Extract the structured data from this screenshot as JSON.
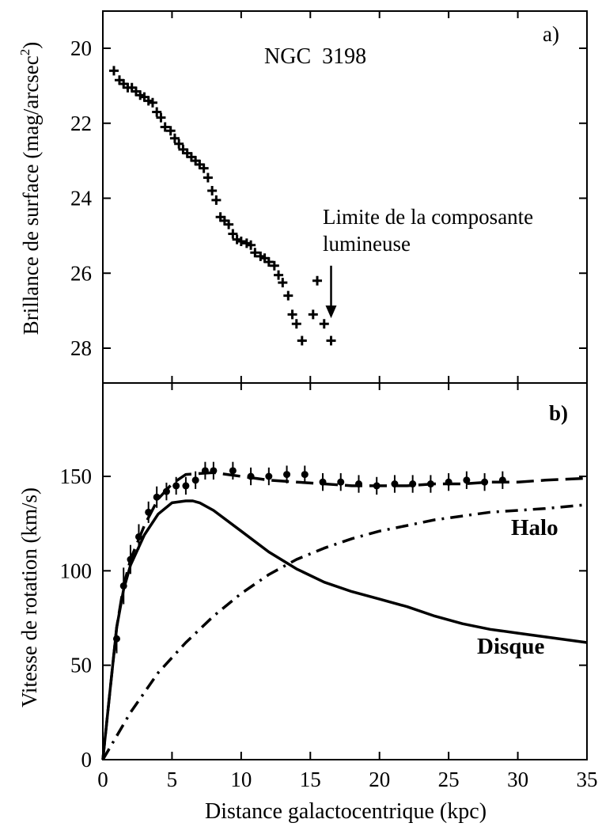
{
  "chart_data": [
    {
      "panel_label": "a)",
      "type": "scatter",
      "annotation_title": "NGC  3198",
      "ylabel_main": "Brillance de surface (mag/arcsec",
      "ylabel_sup": "2",
      "ylabel_close": ")",
      "xlim": [
        0,
        35
      ],
      "ylim": [
        29,
        19
      ],
      "y_inverted": true,
      "yticks": [
        "20",
        "22",
        "24",
        "26",
        "28"
      ],
      "ytick_values": [
        20,
        22,
        24,
        26,
        28
      ],
      "annotation_lines": [
        "Limite de la composante",
        "lumineuse"
      ],
      "arrow_x": 16.5,
      "arrow_y_from": 25.8,
      "arrow_y_to": 27.2,
      "series": [
        {
          "marker": "plus",
          "x": [
            0.8,
            1.2,
            1.5,
            1.8,
            2.1,
            2.4,
            2.7,
            3.0,
            3.3,
            3.6,
            3.9,
            4.2,
            4.5,
            4.9,
            5.2,
            5.5,
            5.8,
            6.1,
            6.4,
            6.7,
            7.0,
            7.3,
            7.6,
            7.9,
            8.2,
            8.5,
            8.8,
            9.1,
            9.4,
            9.7,
            10.0,
            10.4,
            10.7,
            11.0,
            11.4,
            11.7,
            12.0,
            12.4,
            12.7,
            13.0,
            13.4,
            13.7,
            14.0,
            14.4,
            15.2,
            15.5,
            16.0,
            16.5
          ],
          "y": [
            20.6,
            20.85,
            20.95,
            21.05,
            21.05,
            21.15,
            21.25,
            21.3,
            21.4,
            21.45,
            21.7,
            21.85,
            22.1,
            22.2,
            22.4,
            22.55,
            22.7,
            22.8,
            22.9,
            23.0,
            23.1,
            23.2,
            23.45,
            23.8,
            24.05,
            24.5,
            24.6,
            24.7,
            24.95,
            25.1,
            25.15,
            25.2,
            25.25,
            25.45,
            25.55,
            25.6,
            25.7,
            25.8,
            26.05,
            26.25,
            26.6,
            27.1,
            27.35,
            27.8,
            27.1,
            26.2,
            27.35,
            27.8
          ]
        }
      ]
    },
    {
      "panel_label": "b)",
      "type": "line",
      "xlabel": "Distance galactocentrique (kpc)",
      "ylabel": "Vitesse de rotation (km/s)",
      "xlim": [
        0,
        35
      ],
      "ylim": [
        0,
        200
      ],
      "xticks": [
        "0",
        "5",
        "10",
        "15",
        "20",
        "25",
        "30",
        "35"
      ],
      "xtick_values": [
        0,
        5,
        10,
        15,
        20,
        25,
        30,
        35
      ],
      "yticks": [
        "0",
        "50",
        "100",
        "150"
      ],
      "ytick_values": [
        0,
        50,
        100,
        150
      ],
      "curve_labels": [
        "Halo",
        "Disque"
      ],
      "observed": {
        "marker": "circle-errorbar",
        "x": [
          1.0,
          1.5,
          2.0,
          2.6,
          3.3,
          3.9,
          4.6,
          5.3,
          6.0,
          6.7,
          7.4,
          8.0,
          9.4,
          10.7,
          12.0,
          13.3,
          14.6,
          15.9,
          17.2,
          18.5,
          19.8,
          21.1,
          22.4,
          23.7,
          25.0,
          26.3,
          27.6,
          28.9
        ],
        "y": [
          64,
          92,
          106,
          118,
          131,
          139,
          142,
          145,
          145,
          148,
          153,
          153,
          153,
          150,
          150,
          151,
          151,
          147,
          147,
          146,
          145,
          146,
          146,
          146,
          147,
          148,
          147,
          148
        ],
        "err": [
          6,
          8,
          6,
          5,
          4,
          4,
          3,
          3,
          3,
          3,
          3,
          3,
          3,
          3,
          3,
          3,
          3,
          3,
          3,
          3,
          3,
          3,
          3,
          3,
          3,
          3,
          3,
          3
        ]
      },
      "series": [
        {
          "style": "dashed",
          "x": [
            0,
            0.5,
            1,
            1.5,
            2,
            3,
            4,
            5,
            6,
            8,
            10,
            12,
            14,
            16,
            18,
            20,
            22,
            24,
            26,
            28,
            30,
            32,
            35
          ],
          "y": [
            0,
            35,
            70,
            92,
            106,
            124,
            138,
            146,
            151,
            152,
            150,
            148,
            147,
            146,
            145,
            145,
            145,
            146,
            146,
            147,
            147,
            148,
            149
          ]
        },
        {
          "style": "solid",
          "x": [
            0,
            0.5,
            1,
            1.5,
            2,
            3,
            4,
            5,
            6,
            6.5,
            7,
            8,
            10,
            12,
            14,
            16,
            18,
            20,
            22,
            24,
            26,
            28,
            30,
            32,
            35
          ],
          "y": [
            0,
            35,
            70,
            90,
            103,
            119,
            130,
            136,
            137,
            137,
            136,
            132,
            121,
            110,
            101,
            94,
            89,
            85,
            81,
            76,
            72,
            69,
            67,
            65,
            62
          ]
        },
        {
          "style": "dash-dot",
          "x": [
            0,
            2,
            4,
            6,
            8,
            10,
            12,
            14,
            16,
            18,
            20,
            22,
            24,
            26,
            28,
            30,
            32,
            35
          ],
          "y": [
            0,
            25,
            46,
            62,
            76,
            88,
            98,
            106,
            112,
            117,
            121,
            124,
            127,
            129,
            131,
            132,
            133,
            135
          ]
        }
      ]
    }
  ]
}
